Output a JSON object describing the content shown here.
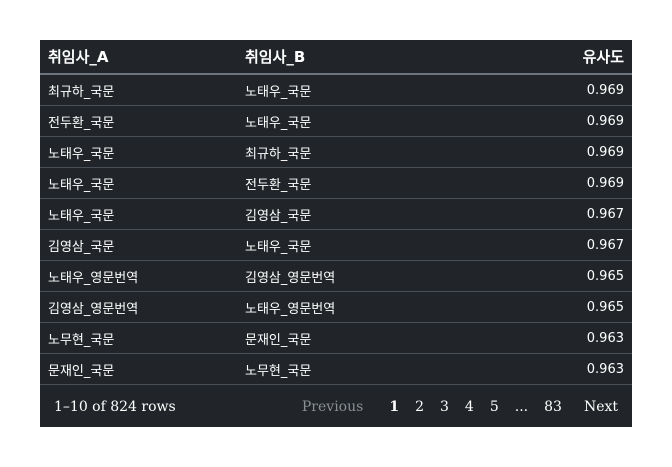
{
  "table": {
    "columns": [
      "취임사_A",
      "취임사_B",
      "유사도"
    ],
    "rows": [
      [
        "최규하_국문",
        "노태우_국문",
        "0.969"
      ],
      [
        "전두환_국문",
        "노태우_국문",
        "0.969"
      ],
      [
        "노태우_국문",
        "최규하_국문",
        "0.969"
      ],
      [
        "노태우_국문",
        "전두환_국문",
        "0.969"
      ],
      [
        "노태우_국문",
        "김영삼_국문",
        "0.967"
      ],
      [
        "김영삼_국문",
        "노태우_국문",
        "0.967"
      ],
      [
        "노태우_영문번역",
        "김영삼_영문번역",
        "0.965"
      ],
      [
        "김영삼_영문번역",
        "노태우_영문번역",
        "0.965"
      ],
      [
        "노무현_국문",
        "문재인_국문",
        "0.963"
      ],
      [
        "문재인_국문",
        "노무현_국문",
        "0.963"
      ]
    ]
  },
  "footer": {
    "row_info": "1–10 of 824 rows",
    "previous": "Previous",
    "pages": [
      "1",
      "2",
      "3",
      "4",
      "5"
    ],
    "ellipsis": "...",
    "last_page": "83",
    "next": "Next",
    "current_page": "1"
  }
}
